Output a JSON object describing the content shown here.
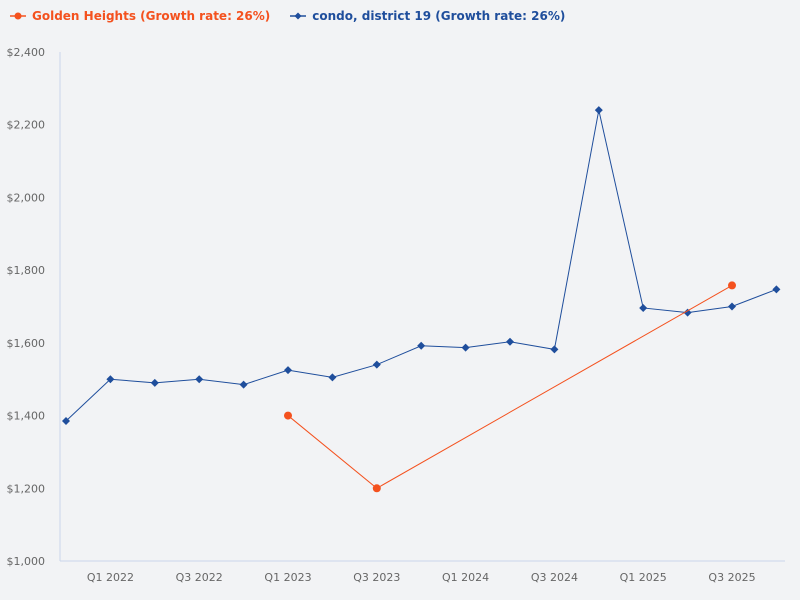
{
  "chart_data": {
    "type": "line",
    "categories": [
      "Q4 2021",
      "Q1 2022",
      "Q2 2022",
      "Q3 2022",
      "Q4 2022",
      "Q1 2023",
      "Q2 2023",
      "Q3 2023",
      "Q4 2023",
      "Q1 2024",
      "Q2 2024",
      "Q3 2024",
      "Q4 2024",
      "Q1 2025",
      "Q2 2025",
      "Q3 2025",
      "Q4 2025"
    ],
    "x_tick_labels": [
      "Q1 2022",
      "Q3 2022",
      "Q1 2023",
      "Q3 2023",
      "Q1 2024",
      "Q3 2024",
      "Q1 2025",
      "Q3 2025"
    ],
    "y_tick_labels": [
      "$1,000",
      "$1,200",
      "$1,400",
      "$1,600",
      "$1,800",
      "$2,000",
      "$2,200",
      "$2,400"
    ],
    "ylim": [
      1000,
      2400
    ],
    "grid": false,
    "legend_position": "top-left",
    "series": [
      {
        "name": "Golden Heights (Growth rate: 26%)",
        "color": "#f4511e",
        "marker": "circle",
        "values": [
          null,
          null,
          null,
          null,
          null,
          1400,
          null,
          1200,
          null,
          null,
          null,
          null,
          null,
          null,
          null,
          1758,
          null
        ]
      },
      {
        "name": "condo, district 19 (Growth rate: 26%)",
        "color": "#1f4e9c",
        "marker": "diamond",
        "values": [
          1385,
          1500,
          1490,
          1500,
          1485,
          1525,
          1505,
          1540,
          1592,
          1587,
          1603,
          1582,
          2240,
          1696,
          1683,
          1700,
          1747
        ]
      }
    ]
  }
}
